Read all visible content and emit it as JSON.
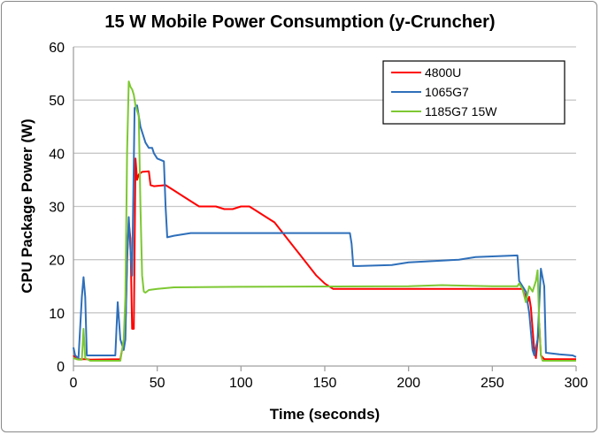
{
  "chart_data": {
    "type": "line",
    "title": "15 W Mobile Power Consumption (y-Cruncher)",
    "xlabel": "Time (seconds)",
    "ylabel": "CPU Package Power (W)",
    "xlim": [
      0,
      300
    ],
    "ylim": [
      0,
      60
    ],
    "xticks": [
      0,
      50,
      100,
      150,
      200,
      250,
      300
    ],
    "yticks": [
      0,
      10,
      20,
      30,
      40,
      50,
      60
    ],
    "grid": "horizontal",
    "legend_position": "top-right",
    "series": [
      {
        "name": "4800U",
        "color": "#ff0000",
        "points": [
          [
            0,
            2
          ],
          [
            2,
            1.3
          ],
          [
            8,
            1.3
          ],
          [
            10,
            1.2
          ],
          [
            28,
            1.3
          ],
          [
            29,
            3
          ],
          [
            30,
            3.5
          ],
          [
            31,
            7
          ],
          [
            32,
            20
          ],
          [
            33,
            27
          ],
          [
            34,
            24
          ],
          [
            35,
            7
          ],
          [
            36,
            7
          ],
          [
            37,
            39
          ],
          [
            38,
            35
          ],
          [
            39,
            36
          ],
          [
            41,
            36.5
          ],
          [
            45,
            36.6
          ],
          [
            46,
            34
          ],
          [
            48,
            33.8
          ],
          [
            55,
            34
          ],
          [
            60,
            33
          ],
          [
            65,
            32
          ],
          [
            70,
            31
          ],
          [
            75,
            30
          ],
          [
            85,
            30
          ],
          [
            90,
            29.5
          ],
          [
            95,
            29.5
          ],
          [
            100,
            30
          ],
          [
            105,
            30
          ],
          [
            110,
            29
          ],
          [
            115,
            28
          ],
          [
            120,
            27
          ],
          [
            125,
            25
          ],
          [
            130,
            23
          ],
          [
            135,
            21
          ],
          [
            140,
            19
          ],
          [
            145,
            17
          ],
          [
            150,
            15.5
          ],
          [
            155,
            14.5
          ],
          [
            200,
            14.5
          ],
          [
            250,
            14.5
          ],
          [
            268,
            14.5
          ],
          [
            271,
            12
          ],
          [
            272,
            13
          ],
          [
            273,
            11
          ],
          [
            275,
            3
          ],
          [
            276,
            1.5
          ],
          [
            278,
            8
          ],
          [
            279,
            2
          ],
          [
            281,
            1.3
          ],
          [
            300,
            1.3
          ]
        ]
      },
      {
        "name": "1065G7",
        "color": "#2e6fba",
        "points": [
          [
            0,
            3.5
          ],
          [
            1,
            2
          ],
          [
            3,
            1.5
          ],
          [
            5,
            13
          ],
          [
            6,
            16.7
          ],
          [
            7,
            13
          ],
          [
            8,
            2
          ],
          [
            25,
            2
          ],
          [
            26.4,
            12
          ],
          [
            28,
            5
          ],
          [
            30,
            3
          ],
          [
            31,
            5
          ],
          [
            32,
            20
          ],
          [
            33,
            28
          ],
          [
            34,
            22
          ],
          [
            35,
            17
          ],
          [
            36.5,
            48.5
          ],
          [
            38,
            49
          ],
          [
            39,
            47
          ],
          [
            40,
            45
          ],
          [
            42,
            43
          ],
          [
            43,
            42
          ],
          [
            45,
            41
          ],
          [
            47,
            41
          ],
          [
            48,
            40
          ],
          [
            50,
            39
          ],
          [
            54,
            38.5
          ],
          [
            55,
            30
          ],
          [
            56,
            24.2
          ],
          [
            60,
            24.5
          ],
          [
            70,
            25
          ],
          [
            150,
            25
          ],
          [
            165,
            25
          ],
          [
            166,
            23
          ],
          [
            167,
            18.8
          ],
          [
            170,
            18.8
          ],
          [
            190,
            19
          ],
          [
            200,
            19.5
          ],
          [
            230,
            20
          ],
          [
            240,
            20.5
          ],
          [
            265,
            20.8
          ],
          [
            266,
            16
          ],
          [
            270,
            14
          ],
          [
            272,
            10
          ],
          [
            274,
            3
          ],
          [
            275,
            2
          ],
          [
            277,
            5
          ],
          [
            279,
            18.3
          ],
          [
            281,
            15
          ],
          [
            282,
            2.5
          ],
          [
            290,
            2.2
          ],
          [
            298,
            2
          ],
          [
            300,
            1.7
          ]
        ]
      },
      {
        "name": "1185G7 15W",
        "color": "#7dc832",
        "points": [
          [
            0,
            1.5
          ],
          [
            3,
            1.2
          ],
          [
            5,
            1.2
          ],
          [
            6,
            7
          ],
          [
            7,
            1.5
          ],
          [
            10,
            1
          ],
          [
            28,
            1
          ],
          [
            30,
            5
          ],
          [
            31,
            13
          ],
          [
            32,
            40
          ],
          [
            33,
            53.5
          ],
          [
            34,
            52.5
          ],
          [
            35,
            52
          ],
          [
            36,
            51
          ],
          [
            37,
            49
          ],
          [
            38,
            48
          ],
          [
            39,
            47
          ],
          [
            40,
            30
          ],
          [
            41,
            17
          ],
          [
            42,
            14
          ],
          [
            43,
            13.8
          ],
          [
            45,
            14.3
          ],
          [
            50,
            14.5
          ],
          [
            60,
            14.8
          ],
          [
            100,
            14.9
          ],
          [
            200,
            15
          ],
          [
            220,
            15.2
          ],
          [
            250,
            15
          ],
          [
            265,
            15
          ],
          [
            266,
            15.5
          ],
          [
            268,
            14.5
          ],
          [
            270,
            12
          ],
          [
            272,
            15
          ],
          [
            274,
            14
          ],
          [
            276,
            16
          ],
          [
            277,
            18
          ],
          [
            278,
            8
          ],
          [
            279,
            2
          ],
          [
            280,
            1
          ],
          [
            300,
            1
          ]
        ]
      }
    ]
  }
}
